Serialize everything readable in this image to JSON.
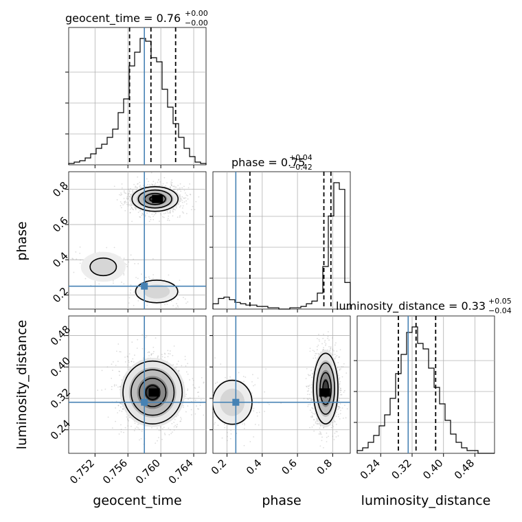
{
  "colors": {
    "truth": "#4682b4",
    "hist": "#000000",
    "scatter": "#9a9a9a",
    "grid": "#b0b0b0"
  },
  "chart_data": {
    "type": "corner",
    "grid": true,
    "parameters": [
      {
        "name": "geocent_time",
        "xlabel": "geocent_time",
        "range": [
          0.7488,
          0.7655
        ],
        "ticks": [
          0.752,
          0.756,
          0.76,
          0.764
        ],
        "tick_labels": [
          "0.752",
          "0.756",
          "0.760",
          "0.764"
        ],
        "truth": 0.758,
        "quantiles": [
          0.7562,
          0.7588,
          0.7618
        ],
        "title": {
          "main": "geocent_time = 0.76",
          "sup": "+0.00",
          "sub": "−0.00"
        }
      },
      {
        "name": "phase",
        "xlabel": "phase",
        "ylabel": "phase",
        "range": [
          0.12,
          0.9
        ],
        "ticks": [
          0.2,
          0.4,
          0.6,
          0.8
        ],
        "tick_labels": [
          "0.2",
          "0.4",
          "0.6",
          "0.8"
        ],
        "truth": 0.25,
        "quantiles": [
          0.33,
          0.75,
          0.79
        ],
        "title": {
          "main": "phase = 0.75",
          "sup": "+0.04",
          "sub": "−0.42"
        }
      },
      {
        "name": "luminosity_distance",
        "xlabel": "luminosity_distance",
        "ylabel": "luminosity_distance",
        "range": [
          0.18,
          0.53
        ],
        "ticks": [
          0.24,
          0.32,
          0.4,
          0.48
        ],
        "tick_labels": [
          "0.24",
          "0.32",
          "0.40",
          "0.48"
        ],
        "truth": 0.31,
        "quantiles": [
          0.285,
          0.33,
          0.38
        ],
        "title": {
          "main": "luminosity_distance = 0.33",
          "sup": "+0.05",
          "sub": "−0.04"
        }
      }
    ],
    "histograms": [
      {
        "param": "geocent_time",
        "bin_edges_range": [
          0.7488,
          0.7655
        ],
        "bins": 25,
        "counts": [
          0.01,
          0.02,
          0.03,
          0.05,
          0.08,
          0.12,
          0.15,
          0.2,
          0.26,
          0.38,
          0.48,
          0.72,
          0.82,
          0.92,
          0.9,
          0.78,
          0.75,
          0.55,
          0.42,
          0.3,
          0.2,
          0.12,
          0.06,
          0.02,
          0.01
        ]
      },
      {
        "param": "phase",
        "bin_edges_range": [
          0.12,
          0.9
        ],
        "bins": 25,
        "counts": [
          0.04,
          0.08,
          0.09,
          0.07,
          0.05,
          0.04,
          0.03,
          0.03,
          0.02,
          0.02,
          0.01,
          0.01,
          0.0,
          0.0,
          0.01,
          0.01,
          0.02,
          0.04,
          0.06,
          0.12,
          0.32,
          0.7,
          0.95,
          0.9,
          0.2
        ]
      },
      {
        "param": "luminosity_distance",
        "bin_edges_range": [
          0.18,
          0.53
        ],
        "bins": 25,
        "counts": [
          0.02,
          0.04,
          0.08,
          0.13,
          0.2,
          0.28,
          0.4,
          0.58,
          0.72,
          0.88,
          0.92,
          0.8,
          0.76,
          0.62,
          0.48,
          0.36,
          0.24,
          0.14,
          0.08,
          0.04,
          0.02,
          0.02,
          0.0,
          0.0,
          0.0
        ]
      }
    ],
    "joint_2d": [
      {
        "x": "geocent_time",
        "y": "phase",
        "modes": [
          {
            "cx": 0.7593,
            "cy": 0.745,
            "sx": 0.0014,
            "sy": 0.035,
            "weight": 0.82,
            "peak": [
              0.7596,
              0.745
            ]
          },
          {
            "cx": 0.7595,
            "cy": 0.22,
            "sx": 0.0016,
            "sy": 0.04,
            "weight": 0.12
          },
          {
            "cx": 0.753,
            "cy": 0.36,
            "sx": 0.0016,
            "sy": 0.05,
            "weight": 0.06
          }
        ]
      },
      {
        "x": "geocent_time",
        "y": "luminosity_distance",
        "modes": [
          {
            "cx": 0.759,
            "cy": 0.335,
            "sx": 0.0018,
            "sy": 0.04,
            "weight": 1.0,
            "peak": [
              0.7592,
              0.335
            ]
          }
        ]
      },
      {
        "x": "phase",
        "y": "luminosity_distance",
        "modes": [
          {
            "cx": 0.76,
            "cy": 0.345,
            "sx": 0.035,
            "sy": 0.045,
            "weight": 0.85,
            "peak": [
              0.755,
              0.335
            ]
          },
          {
            "cx": 0.23,
            "cy": 0.31,
            "sx": 0.07,
            "sy": 0.035,
            "weight": 0.15
          }
        ]
      }
    ]
  }
}
